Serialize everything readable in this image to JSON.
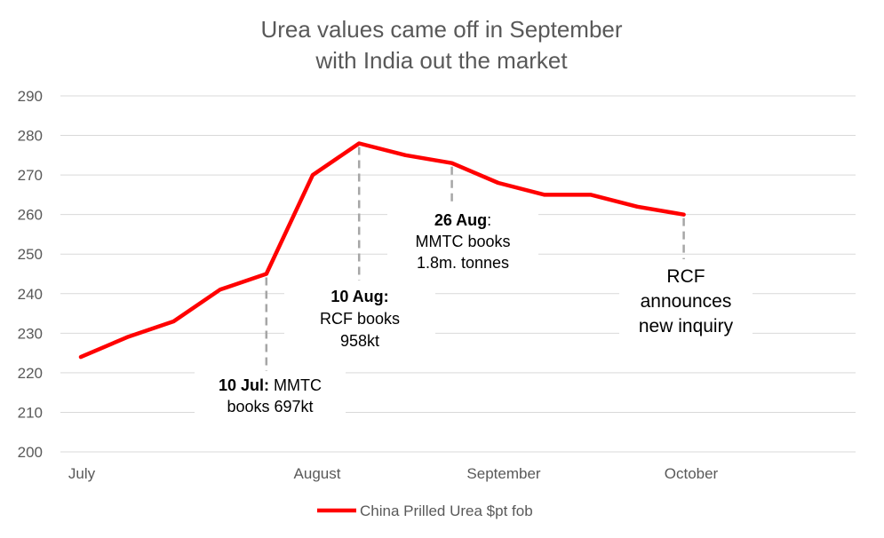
{
  "chart_data": {
    "type": "line",
    "title_lines": [
      "Urea values came off in September",
      "with India out the market"
    ],
    "x_tick_labels": [
      "July",
      "August",
      "September",
      "October"
    ],
    "ylim": [
      200,
      290
    ],
    "yticks": [
      200,
      210,
      220,
      230,
      240,
      250,
      260,
      270,
      280,
      290
    ],
    "grid": true,
    "legend_position": "bottom",
    "series": [
      {
        "name": "China Prilled Urea $pt fob",
        "color": "#ff0000",
        "x": [
          "2020-07-01",
          "2020-07-08",
          "2020-07-15",
          "2020-07-22",
          "2020-07-29",
          "2020-08-05",
          "2020-08-12",
          "2020-08-19",
          "2020-08-26",
          "2020-09-02",
          "2020-09-09",
          "2020-09-16",
          "2020-09-23",
          "2020-09-30"
        ],
        "values": [
          224,
          229,
          233,
          241,
          245,
          270,
          278,
          275,
          273,
          268,
          265,
          265,
          262,
          260
        ]
      }
    ],
    "annotations": [
      {
        "bold": "10 Jul:",
        "lines": [
          " MMTC",
          "books 697kt"
        ],
        "anchor_index": 4,
        "big": false
      },
      {
        "bold": "10 Aug:",
        "lines": [
          "RCF books",
          "958kt"
        ],
        "anchor_index": 6,
        "big": false
      },
      {
        "bold": "26 Aug",
        "lines": [
          ":",
          "MMTC books",
          "1.8m. tonnes"
        ],
        "anchor_index": 8,
        "big": false
      },
      {
        "bold": "",
        "lines": [
          "RCF",
          "announces",
          "new inquiry"
        ],
        "anchor_index": 13,
        "big": true
      }
    ]
  }
}
